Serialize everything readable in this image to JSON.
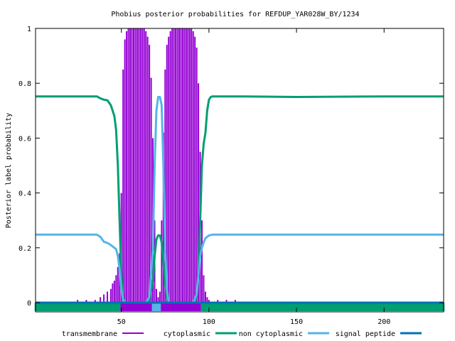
{
  "chart_data": {
    "type": "line",
    "title": "Phobius posterior probabilities for REFDUP_YAR028W_BY/1234",
    "xlabel": "",
    "ylabel": "Posterior label probability",
    "xlim": [
      1,
      234
    ],
    "ylim": [
      0,
      1
    ],
    "x_ticks": [
      50,
      100,
      150,
      200
    ],
    "y_ticks": [
      0,
      0.2,
      0.4,
      0.6,
      0.8,
      1
    ],
    "y_tick_labels": [
      "0",
      "0.2",
      "0.4",
      "0.6",
      "0.8",
      "1"
    ],
    "legend_position": "bottom",
    "series": [
      {
        "name": "transmembrane",
        "color": "#9400d3",
        "style": "impulses",
        "points": [
          [
            20,
            0
          ],
          [
            25,
            0.01
          ],
          [
            30,
            0.01
          ],
          [
            35,
            0.01
          ],
          [
            38,
            0.02
          ],
          [
            40,
            0.03
          ],
          [
            42,
            0.04
          ],
          [
            44,
            0.05
          ],
          [
            45,
            0.07
          ],
          [
            46,
            0.08
          ],
          [
            47,
            0.1
          ],
          [
            48,
            0.13
          ],
          [
            49,
            0.18
          ],
          [
            50,
            0.4
          ],
          [
            51,
            0.85
          ],
          [
            52,
            0.96
          ],
          [
            53,
            0.99
          ],
          [
            54,
            1.0
          ],
          [
            55,
            1.0
          ],
          [
            56,
            1.0
          ],
          [
            57,
            1.0
          ],
          [
            58,
            1.0
          ],
          [
            59,
            1.0
          ],
          [
            60,
            1.0
          ],
          [
            61,
            1.0
          ],
          [
            62,
            1.0
          ],
          [
            63,
            1.0
          ],
          [
            64,
            0.99
          ],
          [
            65,
            0.97
          ],
          [
            66,
            0.94
          ],
          [
            67,
            0.82
          ],
          [
            68,
            0.6
          ],
          [
            69,
            0.3
          ],
          [
            70,
            0.05
          ],
          [
            71,
            0.02
          ],
          [
            72,
            0.04
          ],
          [
            73,
            0.3
          ],
          [
            74,
            0.62
          ],
          [
            75,
            0.85
          ],
          [
            76,
            0.94
          ],
          [
            77,
            0.97
          ],
          [
            78,
            0.99
          ],
          [
            79,
            1.0
          ],
          [
            80,
            1.0
          ],
          [
            81,
            1.0
          ],
          [
            82,
            1.0
          ],
          [
            83,
            1.0
          ],
          [
            84,
            1.0
          ],
          [
            85,
            1.0
          ],
          [
            86,
            1.0
          ],
          [
            87,
            1.0
          ],
          [
            88,
            1.0
          ],
          [
            89,
            1.0
          ],
          [
            90,
            1.0
          ],
          [
            91,
            0.99
          ],
          [
            92,
            0.97
          ],
          [
            93,
            0.93
          ],
          [
            94,
            0.8
          ],
          [
            95,
            0.55
          ],
          [
            96,
            0.3
          ],
          [
            97,
            0.1
          ],
          [
            98,
            0.04
          ],
          [
            99,
            0.02
          ],
          [
            100,
            0.01
          ],
          [
            105,
            0.01
          ],
          [
            110,
            0.01
          ],
          [
            115,
            0.01
          ],
          [
            120,
            0
          ]
        ]
      },
      {
        "name": "cytoplasmic",
        "color": "#009e73",
        "style": "lines",
        "points": [
          [
            1,
            0.752
          ],
          [
            10,
            0.752
          ],
          [
            20,
            0.752
          ],
          [
            30,
            0.752
          ],
          [
            36,
            0.752
          ],
          [
            38,
            0.745
          ],
          [
            40,
            0.74
          ],
          [
            42,
            0.738
          ],
          [
            44,
            0.72
          ],
          [
            46,
            0.68
          ],
          [
            47,
            0.63
          ],
          [
            48,
            0.5
          ],
          [
            49,
            0.3
          ],
          [
            50,
            0.1
          ],
          [
            51,
            0.02
          ],
          [
            52,
            0.0
          ],
          [
            64,
            0.0
          ],
          [
            66,
            0.01
          ],
          [
            68,
            0.08
          ],
          [
            69,
            0.17
          ],
          [
            70,
            0.23
          ],
          [
            71,
            0.245
          ],
          [
            72,
            0.245
          ],
          [
            73,
            0.22
          ],
          [
            74,
            0.15
          ],
          [
            75,
            0.07
          ],
          [
            76,
            0.02
          ],
          [
            77,
            0.0
          ],
          [
            91,
            0.0
          ],
          [
            93,
            0.02
          ],
          [
            94,
            0.1
          ],
          [
            95,
            0.3
          ],
          [
            96,
            0.5
          ],
          [
            97,
            0.58
          ],
          [
            98,
            0.62
          ],
          [
            99,
            0.7
          ],
          [
            100,
            0.74
          ],
          [
            101,
            0.75
          ],
          [
            102,
            0.752
          ],
          [
            120,
            0.752
          ],
          [
            150,
            0.75
          ],
          [
            200,
            0.752
          ],
          [
            234,
            0.752
          ]
        ]
      },
      {
        "name": "non cytoplasmic",
        "color": "#56b4e9",
        "style": "lines",
        "points": [
          [
            1,
            0.248
          ],
          [
            10,
            0.248
          ],
          [
            20,
            0.248
          ],
          [
            30,
            0.248
          ],
          [
            36,
            0.248
          ],
          [
            38,
            0.24
          ],
          [
            40,
            0.222
          ],
          [
            42,
            0.218
          ],
          [
            44,
            0.21
          ],
          [
            46,
            0.2
          ],
          [
            47,
            0.195
          ],
          [
            48,
            0.17
          ],
          [
            49,
            0.12
          ],
          [
            50,
            0.05
          ],
          [
            51,
            0.01
          ],
          [
            52,
            0.0
          ],
          [
            64,
            0.0
          ],
          [
            66,
            0.02
          ],
          [
            68,
            0.2
          ],
          [
            69,
            0.5
          ],
          [
            70,
            0.7
          ],
          [
            71,
            0.75
          ],
          [
            72,
            0.75
          ],
          [
            73,
            0.72
          ],
          [
            74,
            0.5
          ],
          [
            75,
            0.2
          ],
          [
            76,
            0.05
          ],
          [
            77,
            0.0
          ],
          [
            91,
            0.0
          ],
          [
            93,
            0.03
          ],
          [
            94,
            0.1
          ],
          [
            95,
            0.17
          ],
          [
            96,
            0.2
          ],
          [
            97,
            0.22
          ],
          [
            98,
            0.235
          ],
          [
            100,
            0.245
          ],
          [
            102,
            0.248
          ],
          [
            120,
            0.248
          ],
          [
            150,
            0.248
          ],
          [
            200,
            0.248
          ],
          [
            234,
            0.248
          ]
        ]
      },
      {
        "name": "signal peptide",
        "color": "#0072b2",
        "style": "lines",
        "points": [
          [
            1,
            0
          ],
          [
            234,
            0
          ]
        ]
      }
    ],
    "topology_bar": [
      {
        "start": 1,
        "end": 49,
        "label": "cytoplasmic",
        "color": "#009e73"
      },
      {
        "start": 50,
        "end": 67,
        "label": "transmembrane",
        "color": "#9400d3"
      },
      {
        "start": 68,
        "end": 72,
        "label": "non cytoplasmic",
        "color": "#56b4e9"
      },
      {
        "start": 73,
        "end": 95,
        "label": "transmembrane",
        "color": "#9400d3"
      },
      {
        "start": 96,
        "end": 234,
        "label": "cytoplasmic",
        "color": "#009e73"
      }
    ]
  }
}
